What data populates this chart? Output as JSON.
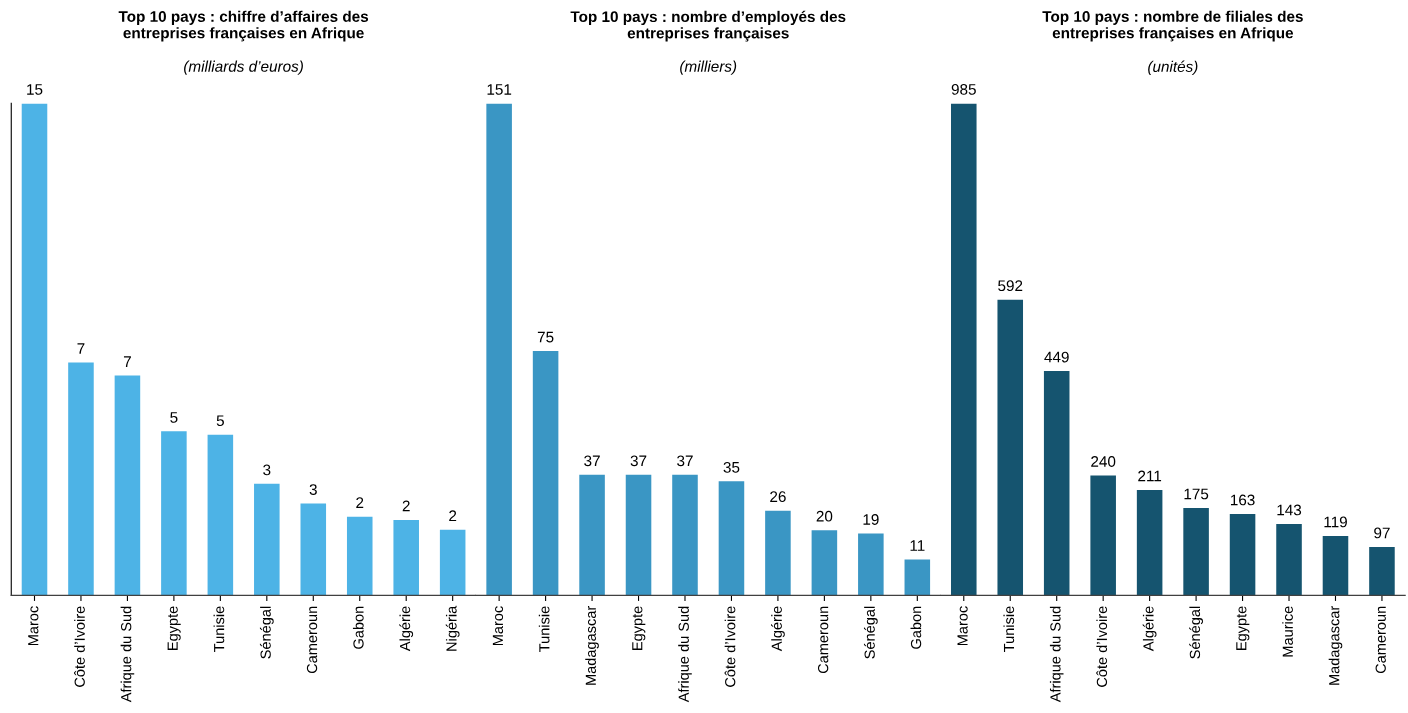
{
  "chart_data": [
    {
      "type": "bar",
      "title": "Top 10 pays : chiffre d’affaires des\nentreprises françaises en Afrique",
      "subtitle": "(milliards d’euros)",
      "categories": [
        "Maroc",
        "Côte d’Ivoire",
        "Afrique du Sud",
        "Egypte",
        "Tunisie",
        "Sénégal",
        "Cameroun",
        "Gabon",
        "Algérie",
        "Nigéria"
      ],
      "values": [
        15,
        7.1,
        6.7,
        5.0,
        4.9,
        3.4,
        2.8,
        2.4,
        2.3,
        2.0
      ],
      "value_labels": [
        "15",
        "7",
        "7",
        "5",
        "5",
        "3",
        "3",
        "2",
        "2",
        "2"
      ],
      "color": "#4db3e6"
    },
    {
      "type": "bar",
      "title": "Top 10 pays : nombre d’employés des\nentreprises françaises",
      "subtitle": "(milliers)",
      "categories": [
        "Maroc",
        "Tunisie",
        "Madagascar",
        "Egypte",
        "Afrique du Sud",
        "Côte d’Ivoire",
        "Algérie",
        "Cameroun",
        "Sénégal",
        "Gabon"
      ],
      "values": [
        151,
        75,
        37,
        37,
        37,
        35,
        26,
        20,
        19,
        11
      ],
      "data_labels": true,
      "color": "#3a96c4"
    },
    {
      "type": "bar",
      "title": "Top 10 pays : nombre de filiales des\nentreprises françaises en Afrique",
      "subtitle": "(unités)",
      "categories": [
        "Maroc",
        "Tunisie",
        "Afrique du Sud",
        "Côte d’Ivoire",
        "Algérie",
        "Sénégal",
        "Egypte",
        "Maurice",
        "Madagascar",
        "Cameroun"
      ],
      "values": [
        985,
        592,
        449,
        240,
        211,
        175,
        163,
        143,
        119,
        97
      ],
      "data_labels": true,
      "color": "#15546f"
    }
  ]
}
